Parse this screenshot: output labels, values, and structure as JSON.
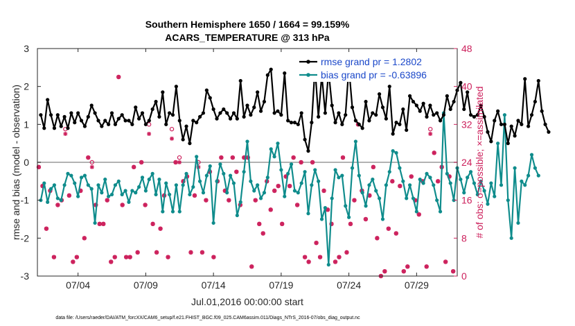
{
  "title": {
    "line1": "Southern Hemisphere 1650 / 1664 = 99.159%",
    "line2": "ACARS_TEMPERATURE @ 313 hPa"
  },
  "chart_data": {
    "type": "line",
    "title": "Southern Hemisphere 1650 / 1664 = 99.159% ACARS_TEMPERATURE @ 313 hPa",
    "xlabel": "Jul.01,2016 00:00:00 start",
    "ylabel": "rmse and bias (model - observation)",
    "y2label": "# of obs: o=possible; ×=assimilated",
    "xlim": [
      1.0,
      32.0
    ],
    "ylim": [
      -3,
      3
    ],
    "y2lim": [
      0,
      48
    ],
    "x_ticks": [
      4,
      9,
      14,
      19,
      24,
      29
    ],
    "x_tick_labels": [
      "07/04",
      "07/09",
      "07/14",
      "07/19",
      "07/24",
      "07/29"
    ],
    "y_ticks": [
      -3,
      -2,
      -1,
      0,
      1,
      2,
      3
    ],
    "y2_ticks": [
      0,
      8,
      16,
      24,
      32,
      40,
      48
    ],
    "zero_line": 0,
    "x_step_days": 0.25,
    "x_start_day": 1.25,
    "series": [
      {
        "name": "rmse grand pr = 1.2802",
        "color": "#000000",
        "axis": "left",
        "values": [
          1.25,
          0.9,
          1.65,
          1.25,
          0.9,
          1.25,
          0.95,
          1.2,
          0.9,
          1.3,
          1.05,
          1.3,
          1.1,
          0.95,
          1.2,
          1.5,
          1.3,
          1.1,
          0.95,
          1.1,
          1.0,
          1.3,
          1.0,
          1.15,
          1.25,
          1.1,
          1.1,
          1.0,
          1.45,
          1.15,
          1.3,
          1.0,
          1.1,
          1.4,
          1.6,
          1.2,
          1.85,
          1.0,
          1.3,
          1.25,
          2.0,
          1.1,
          0.6,
          0.95,
          0.5,
          1.1,
          1.05,
          1.2,
          1.3,
          1.9,
          1.7,
          1.4,
          1.15,
          1.3,
          1.4,
          1.3,
          1.15,
          1.3,
          1.15,
          2.15,
          1.2,
          1.5,
          1.25,
          1.45,
          1.85,
          1.35,
          1.6,
          2.3,
          2.45,
          1.3,
          1.35,
          1.25,
          2.35,
          1.1,
          1.05,
          1.05,
          1.0,
          1.3,
          0.6,
          0.3,
          1.05,
          2.5,
          1.2,
          2.3,
          1.3,
          2.4,
          1.5,
          1.05,
          1.3,
          1.0,
          1.25,
          2.5,
          1.45,
          1.1,
          1.0,
          0.9,
          1.6,
          1.1,
          1.3,
          1.25,
          1.8,
          1.45,
          1.15,
          2.0,
          0.75,
          1.05,
          1.0,
          1.4,
          0.85,
          1.75,
          1.6,
          1.5,
          1.35,
          1.55,
          1.2,
          1.5,
          1.25,
          1.3,
          1.1,
          1.25,
          1.75,
          1.4,
          1.6,
          1.9,
          2.1,
          1.4,
          1.85,
          1.25,
          1.2,
          1.25,
          1.5,
          1.2,
          0.8,
          0.55,
          1.1,
          1.35,
          1.0,
          1.0,
          0.5,
          0.95,
          0.7,
          1.1,
          1.0,
          2.2,
          0.95,
          1.25,
          1.6,
          2.15,
          1.35,
          1.0,
          0.8
        ]
      },
      {
        "name": "bias grand pr = -0.63896",
        "color": "#0f8c8c",
        "axis": "left",
        "values": [
          -1.0,
          -0.55,
          -1.05,
          -0.7,
          -0.6,
          -0.95,
          -1.0,
          -0.6,
          -0.3,
          -0.35,
          -0.55,
          -0.9,
          -0.4,
          -0.35,
          -0.6,
          -0.7,
          -1.6,
          -0.6,
          -0.8,
          -0.45,
          -0.9,
          -0.85,
          -0.6,
          -0.5,
          -0.85,
          -0.75,
          -1.05,
          -0.75,
          -0.8,
          -0.65,
          -0.4,
          -0.75,
          -0.45,
          -0.3,
          -0.85,
          -0.45,
          -1.3,
          -0.55,
          -0.85,
          -1.3,
          -0.6,
          -1.3,
          -0.6,
          -0.3,
          -0.85,
          -0.65,
          0.15,
          -0.5,
          -0.8,
          -0.35,
          -0.1,
          -1.6,
          -0.5,
          -0.05,
          -0.3,
          -0.8,
          -0.35,
          -0.55,
          -1.4,
          -1.05,
          -0.25,
          0.55,
          -0.5,
          -0.75,
          -0.6,
          -0.95,
          -0.8,
          -0.4,
          0.35,
          0.15,
          0.5,
          -0.2,
          -0.9,
          -0.3,
          -0.05,
          -0.75,
          -0.8,
          -0.55,
          -0.25,
          -1.35,
          -0.6,
          -0.2,
          -0.5,
          -1.5,
          -1.2,
          -2.7,
          -0.95,
          -0.2,
          -0.4,
          -0.35,
          -1.15,
          -1.45,
          -0.15,
          0.55,
          -0.35,
          -0.8,
          -1.15,
          -0.6,
          -0.45,
          -0.75,
          -0.95,
          -1.5,
          -0.6,
          -0.25,
          0.3,
          0.25,
          -0.15,
          -0.5,
          -0.95,
          -0.6,
          -0.95,
          -1.3,
          -0.45,
          -0.55,
          -0.3,
          -0.4,
          -0.6,
          -1.0,
          -1.3,
          1.3,
          -0.3,
          -0.55,
          -1.0,
          -0.15,
          -0.45,
          -0.8,
          -0.4,
          -0.25,
          -0.55,
          -0.85,
          -0.5,
          -0.75,
          -1.1,
          -0.55,
          -0.9,
          0.5,
          -0.6,
          1.25,
          -1.0,
          -2.0,
          -0.15,
          -1.6,
          -0.5,
          -0.6,
          -0.35,
          0.2,
          -0.15,
          -0.35
        ]
      },
      {
        "name": "possible",
        "color": "#cc1f5b",
        "axis": "right",
        "marker": "o",
        "values": [
          23,
          19,
          10,
          18,
          4,
          15,
          16,
          31,
          17,
          3,
          4,
          18,
          8,
          25,
          24,
          15,
          11,
          11,
          16,
          3,
          4,
          42,
          15,
          4,
          4,
          23,
          5,
          24,
          15,
          32,
          11,
          5,
          10,
          17,
          4,
          31,
          24,
          25,
          20,
          21,
          5,
          17,
          24,
          5,
          16,
          22,
          4,
          20,
          25,
          18,
          16,
          25,
          22,
          15,
          25,
          25,
          2,
          16,
          11,
          9,
          20,
          14,
          18,
          19,
          11,
          21,
          19,
          25,
          15,
          24,
          4,
          3,
          24,
          7,
          4,
          18,
          14,
          11,
          3,
          4,
          25,
          5,
          11,
          16,
          32,
          18,
          12,
          17,
          23,
          8,
          0,
          1,
          10,
          20,
          9,
          19,
          1,
          2,
          21,
          16,
          13,
          20,
          2,
          31,
          26,
          20,
          23,
          3,
          21,
          1
        ]
      },
      {
        "name": "assimilated",
        "color": "#cc1f5b",
        "axis": "right",
        "marker": "*",
        "values": [
          23,
          19,
          10,
          18,
          4,
          15,
          16,
          30,
          17,
          3,
          4,
          18,
          8,
          25,
          23,
          15,
          11,
          11,
          16,
          3,
          4,
          42,
          15,
          4,
          4,
          23,
          5,
          24,
          15,
          30,
          11,
          5,
          10,
          17,
          4,
          29,
          24,
          24,
          20,
          21,
          5,
          17,
          23,
          5,
          16,
          22,
          4,
          20,
          25,
          18,
          16,
          25,
          22,
          15,
          25,
          25,
          2,
          16,
          11,
          9,
          20,
          14,
          18,
          19,
          11,
          21,
          19,
          25,
          15,
          24,
          4,
          3,
          24,
          7,
          4,
          18,
          14,
          11,
          3,
          4,
          25,
          5,
          11,
          16,
          32,
          18,
          12,
          17,
          23,
          8,
          0,
          1,
          10,
          20,
          9,
          19,
          1,
          2,
          21,
          16,
          13,
          20,
          2,
          30,
          26,
          20,
          23,
          3,
          21,
          1
        ]
      }
    ],
    "legend": {
      "position": "top-right",
      "entries": [
        "rmse grand pr = 1.2802",
        "bias grand pr = -0.63896"
      ]
    }
  },
  "footer": "data file: /Users/raeder/DAI/ATM_forcXX/CAM6_setup/f.e21.FHIST_BGC.f09_025.CAM6assim.011/Diags_NTrS_2016-07/obs_diag_output.nc"
}
